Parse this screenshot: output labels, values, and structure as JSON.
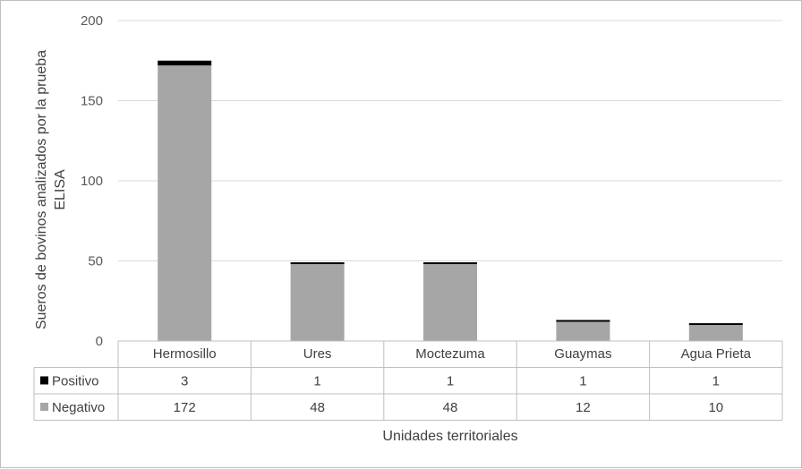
{
  "chart_data": {
    "type": "bar",
    "stacked": true,
    "categories": [
      "Hermosillo",
      "Ures",
      "Moctezuma",
      "Guaymas",
      "Agua Prieta"
    ],
    "series": [
      {
        "name": "Positivo",
        "values": [
          3,
          1,
          1,
          1,
          1
        ],
        "color": "#000000"
      },
      {
        "name": "Negativo",
        "values": [
          172,
          48,
          48,
          12,
          10
        ],
        "color": "#a6a6a6"
      }
    ],
    "xlabel": "Unidades territoriales",
    "ylabel_line1": "Sueros de bovinos analizados por la prueba",
    "ylabel_line2": "ELISA",
    "ylim": [
      0,
      200
    ],
    "yticks": [
      0,
      50,
      100,
      150,
      200
    ],
    "grid": true,
    "legend": "data-table"
  }
}
